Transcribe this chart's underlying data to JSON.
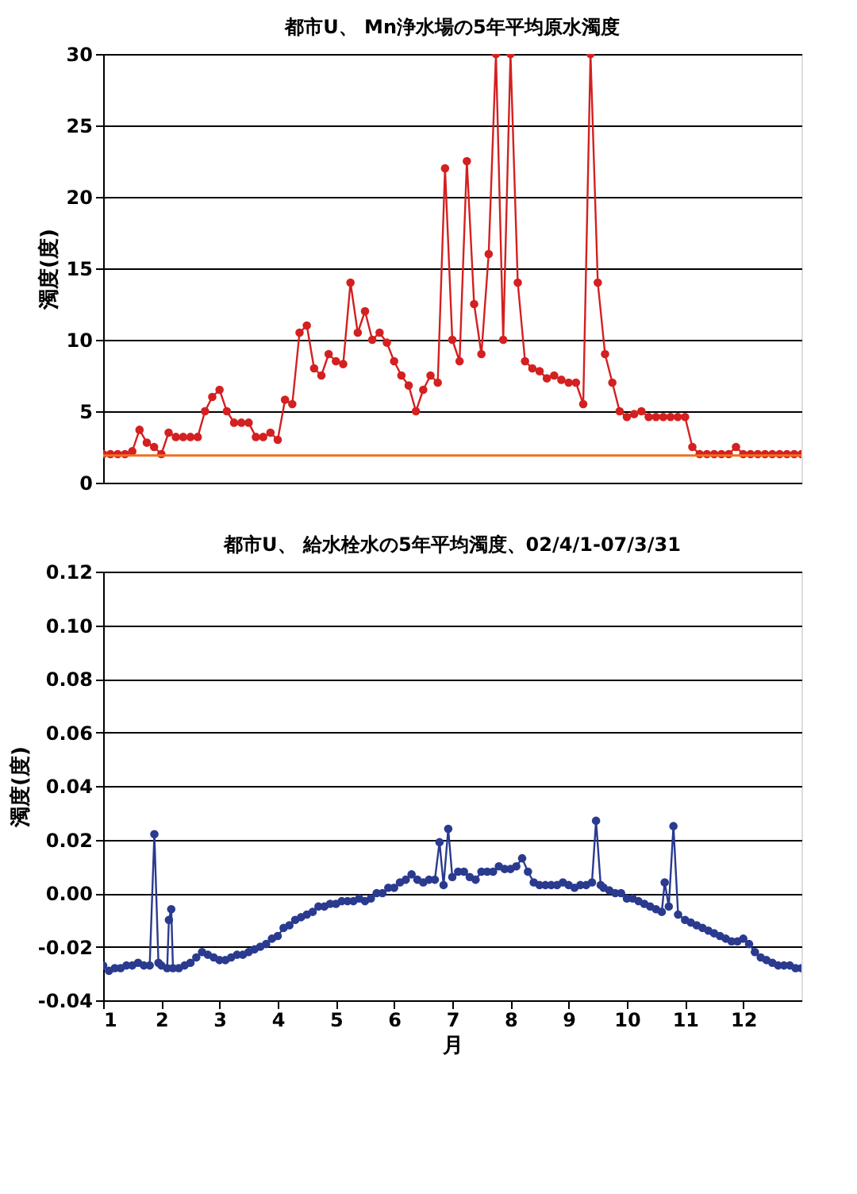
{
  "chart_data": [
    {
      "type": "line",
      "title": "都市U、 Mn浄水場の5年平均原水濁度",
      "ylabel": "濁度(度)",
      "categories": [
        null,
        null,
        null,
        null,
        null,
        null,
        null,
        null,
        null,
        null,
        null,
        null,
        null,
        null,
        null,
        null,
        null,
        null,
        null,
        null,
        null,
        null,
        null,
        null,
        null,
        null,
        null,
        null,
        null,
        null,
        null,
        null,
        null,
        null,
        null,
        null,
        null,
        null,
        null,
        null,
        null,
        null,
        null,
        null,
        null,
        null,
        null,
        null,
        null,
        null,
        null,
        null,
        null,
        null,
        null,
        null,
        null,
        null,
        null,
        null,
        null,
        null,
        null,
        null,
        null,
        null,
        null,
        null,
        null,
        null,
        null,
        null,
        null,
        null,
        null,
        null,
        null,
        null,
        null,
        null,
        null,
        null,
        null,
        null,
        null,
        null,
        null,
        null,
        null,
        null,
        null,
        null,
        null,
        null,
        null,
        null,
        null
      ],
      "series": [
        {
          "color": "#d42020",
          "values": [
            2.0,
            2.0,
            2.0,
            2.0,
            2.2,
            3.7,
            2.8,
            2.5,
            2.0,
            3.5,
            3.2,
            3.2,
            3.2,
            3.2,
            5.0,
            6.0,
            6.5,
            5.0,
            4.2,
            4.2,
            4.2,
            3.2,
            3.2,
            3.5,
            3.0,
            5.8,
            5.5,
            10.5,
            11.0,
            8.0,
            7.5,
            9.0,
            8.5,
            8.3,
            14.0,
            10.5,
            12.0,
            10.0,
            10.5,
            9.8,
            8.5,
            7.5,
            6.8,
            5.0,
            6.5,
            7.5,
            7.0,
            22.0,
            10.0,
            8.5,
            22.5,
            12.5,
            9.0,
            16.0,
            30,
            10.0,
            30,
            14.0,
            8.5,
            8.0,
            7.8,
            7.3,
            7.5,
            7.2,
            7.0,
            7.0,
            5.5,
            30,
            14.0,
            9.0,
            7.0,
            5.0,
            4.6,
            4.8,
            5.0,
            4.6,
            4.6,
            4.6,
            4.6,
            4.6,
            4.6,
            2.5,
            2.0,
            2.0,
            2.0,
            2.0,
            2.0,
            2.5,
            2.0,
            2.0,
            2.0,
            2.0,
            2.0,
            2.0,
            2.0,
            2.0,
            2.0
          ]
        }
      ],
      "ylim": [
        0,
        30
      ],
      "yticks": [
        0,
        5,
        10,
        15,
        20,
        25,
        30
      ],
      "grid": "y",
      "marker": "circle",
      "legend": false,
      "tick_labels": "y",
      "ref_lines": [
        {
          "axis": "y",
          "value": 1.9,
          "color": "#f07020"
        }
      ]
    },
    {
      "type": "line",
      "title": "都市U、 給水栓水の5年平均濁度、02/4/1-07/3/31",
      "ylabel": "濁度(度)",
      "xlabel": "月",
      "x": [
        1.0,
        1.1,
        1.2,
        1.3,
        1.4,
        1.5,
        1.6,
        1.7,
        1.8,
        1.88,
        1.95,
        2.0,
        2.1,
        2.13,
        2.17,
        2.2,
        2.3,
        2.4,
        2.5,
        2.6,
        2.7,
        2.8,
        2.9,
        3.0,
        3.1,
        3.2,
        3.3,
        3.4,
        3.5,
        3.6,
        3.7,
        3.8,
        3.9,
        4.0,
        4.1,
        4.2,
        4.3,
        4.4,
        4.5,
        4.6,
        4.7,
        4.8,
        4.9,
        5.0,
        5.1,
        5.2,
        5.3,
        5.4,
        5.5,
        5.6,
        5.7,
        5.8,
        5.9,
        6.0,
        6.1,
        6.2,
        6.3,
        6.4,
        6.5,
        6.6,
        6.7,
        6.78,
        6.85,
        6.93,
        7.0,
        7.1,
        7.2,
        7.3,
        7.4,
        7.5,
        7.6,
        7.7,
        7.8,
        7.9,
        8.0,
        8.1,
        8.2,
        8.3,
        8.4,
        8.5,
        8.6,
        8.7,
        8.8,
        8.9,
        9.0,
        9.1,
        9.2,
        9.3,
        9.4,
        9.47,
        9.55,
        9.6,
        9.7,
        9.8,
        9.9,
        10.0,
        10.1,
        10.2,
        10.3,
        10.4,
        10.5,
        10.6,
        10.65,
        10.72,
        10.8,
        10.88,
        11.0,
        11.1,
        11.2,
        11.3,
        11.4,
        11.5,
        11.6,
        11.7,
        11.8,
        11.9,
        12.0,
        12.1,
        12.2,
        12.3,
        12.4,
        12.5,
        12.6,
        12.7,
        12.8,
        12.9,
        13.0
      ],
      "series": [
        {
          "color": "#2a3a8f",
          "values": [
            -0.027,
            -0.029,
            -0.028,
            -0.028,
            -0.027,
            -0.027,
            -0.026,
            -0.027,
            -0.027,
            0.022,
            -0.026,
            -0.027,
            -0.028,
            -0.01,
            -0.006,
            -0.028,
            -0.028,
            -0.027,
            -0.026,
            -0.024,
            -0.022,
            -0.023,
            -0.024,
            -0.025,
            -0.025,
            -0.024,
            -0.023,
            -0.023,
            -0.022,
            -0.021,
            -0.02,
            -0.019,
            -0.017,
            -0.016,
            -0.013,
            -0.012,
            -0.01,
            -0.009,
            -0.008,
            -0.007,
            -0.005,
            -0.005,
            -0.004,
            -0.004,
            -0.003,
            -0.003,
            -0.003,
            -0.002,
            -0.003,
            -0.002,
            0.0,
            0.0,
            0.002,
            0.002,
            0.004,
            0.005,
            0.007,
            0.005,
            0.004,
            0.005,
            0.005,
            0.019,
            0.003,
            0.024,
            0.006,
            0.008,
            0.008,
            0.006,
            0.005,
            0.008,
            0.008,
            0.008,
            0.01,
            0.009,
            0.009,
            0.01,
            0.013,
            0.008,
            0.004,
            0.003,
            0.003,
            0.003,
            0.003,
            0.004,
            0.003,
            0.002,
            0.003,
            0.003,
            0.004,
            0.027,
            0.003,
            0.002,
            0.001,
            0.0,
            0.0,
            -0.002,
            -0.002,
            -0.003,
            -0.004,
            -0.005,
            -0.006,
            -0.007,
            0.004,
            -0.005,
            0.025,
            -0.008,
            -0.01,
            -0.011,
            -0.012,
            -0.013,
            -0.014,
            -0.015,
            -0.016,
            -0.017,
            -0.018,
            -0.018,
            -0.017,
            -0.019,
            -0.022,
            -0.024,
            -0.025,
            -0.026,
            -0.027,
            -0.027,
            -0.027,
            -0.028,
            -0.028
          ]
        }
      ],
      "xlim": [
        1,
        13
      ],
      "xticks": [
        1,
        2,
        3,
        4,
        5,
        6,
        7,
        8,
        9,
        10,
        11,
        12
      ],
      "ylim": [
        -0.04,
        0.12
      ],
      "yticks": [
        -0.04,
        {
          "value": -0.02,
          "label": "-0.02"
        },
        {
          "value": 0,
          "label": "0.00"
        },
        0.02,
        0.04,
        0.06,
        0.08,
        {
          "value": 0.1,
          "label": "0.10"
        },
        0.12
      ],
      "grid": "y",
      "marker": "circle",
      "legend": false
    }
  ]
}
